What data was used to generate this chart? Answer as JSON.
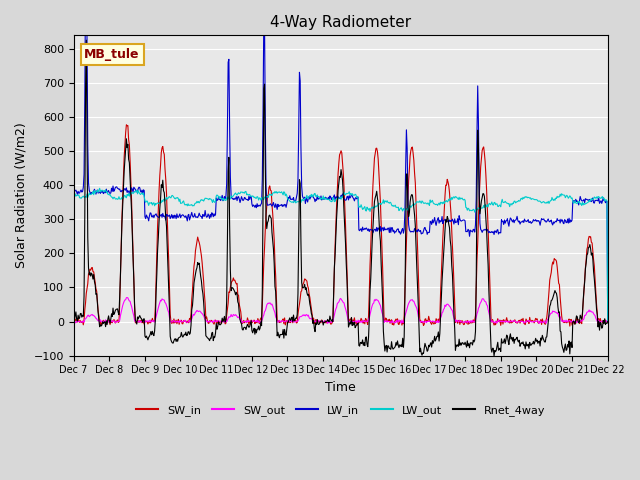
{
  "title": "4-Way Radiometer",
  "xlabel": "Time",
  "ylabel": "Solar Radiation (W/m2)",
  "ylim": [
    -100,
    840
  ],
  "yticks": [
    -100,
    0,
    100,
    200,
    300,
    400,
    500,
    600,
    700,
    800
  ],
  "station_label": "MB_tule",
  "series_colors": {
    "SW_in": "#cc0000",
    "SW_out": "#ff00ff",
    "LW_in": "#0000cc",
    "LW_out": "#00cccc",
    "Rnet_4way": "#000000"
  },
  "xtick_labels": [
    "Dec 7",
    "Dec 8",
    "Dec 9",
    "Dec 10",
    "Dec 11",
    "Dec 12",
    "Dec 13",
    "Dec 14",
    "Dec 15",
    "Dec 16",
    "Dec 17",
    "Dec 18",
    "Dec 19",
    "Dec 20",
    "Dec 21",
    "Dec 22"
  ],
  "n_days": 15,
  "pts_per_day": 48
}
